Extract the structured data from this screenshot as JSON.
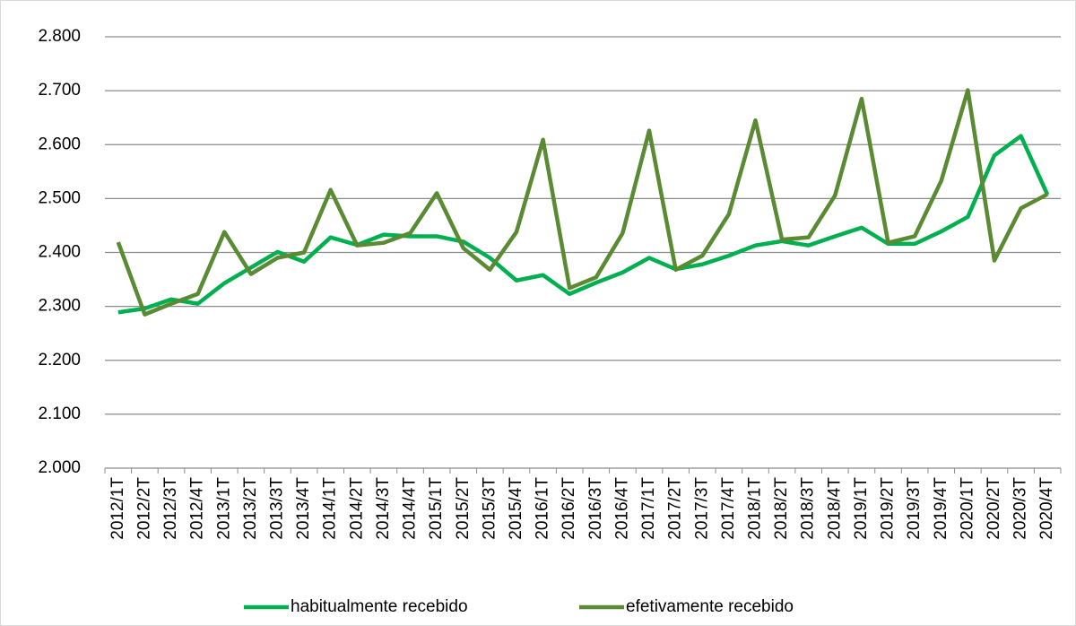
{
  "chart_data": {
    "type": "line",
    "categories": [
      "2012/1T",
      "2012/2T",
      "2012/3T",
      "2012/4T",
      "2013/1T",
      "2013/2T",
      "2013/3T",
      "2013/4T",
      "2014/1T",
      "2014/2T",
      "2014/3T",
      "2014/4T",
      "2015/1T",
      "2015/2T",
      "2015/3T",
      "2015/4T",
      "2016/1T",
      "2016/2T",
      "2016/3T",
      "2016/4T",
      "2017/1T",
      "2017/2T",
      "2017/3T",
      "2017/4T",
      "2018/1T",
      "2018/2T",
      "2018/3T",
      "2018/4T",
      "2019/1T",
      "2019/2T",
      "2019/3T",
      "2019/4T",
      "2020/1T",
      "2020/2T",
      "2020/3T",
      "2020/4T"
    ],
    "series": [
      {
        "name": "habitualmente recebido",
        "color": "#00b050",
        "values": [
          2289,
          2296,
          2313,
          2305,
          2343,
          2372,
          2401,
          2383,
          2428,
          2414,
          2433,
          2430,
          2430,
          2420,
          2390,
          2348,
          2358,
          2323,
          2344,
          2363,
          2390,
          2369,
          2378,
          2394,
          2413,
          2421,
          2413,
          2430,
          2446,
          2416,
          2416,
          2439,
          2466,
          2580,
          2616,
          2507
        ]
      },
      {
        "name": "efetivamente recebido",
        "color": "#5a8a32",
        "values": [
          2419,
          2285,
          2305,
          2323,
          2438,
          2360,
          2390,
          2400,
          2516,
          2413,
          2418,
          2436,
          2510,
          2408,
          2368,
          2438,
          2609,
          2334,
          2354,
          2436,
          2626,
          2368,
          2394,
          2471,
          2645,
          2424,
          2428,
          2506,
          2685,
          2418,
          2430,
          2533,
          2701,
          2385,
          2482,
          2508
        ]
      }
    ],
    "ylim": [
      2000,
      2800
    ],
    "yticks": [
      {
        "value": 2000,
        "label": "2.000"
      },
      {
        "value": 2100,
        "label": "2.100"
      },
      {
        "value": 2200,
        "label": "2.200"
      },
      {
        "value": 2300,
        "label": "2.300"
      },
      {
        "value": 2400,
        "label": "2.400"
      },
      {
        "value": 2500,
        "label": "2.500"
      },
      {
        "value": 2600,
        "label": "2.600"
      },
      {
        "value": 2700,
        "label": "2.700"
      },
      {
        "value": 2800,
        "label": "2.800"
      }
    ],
    "grid": true,
    "legend": "bottom"
  }
}
